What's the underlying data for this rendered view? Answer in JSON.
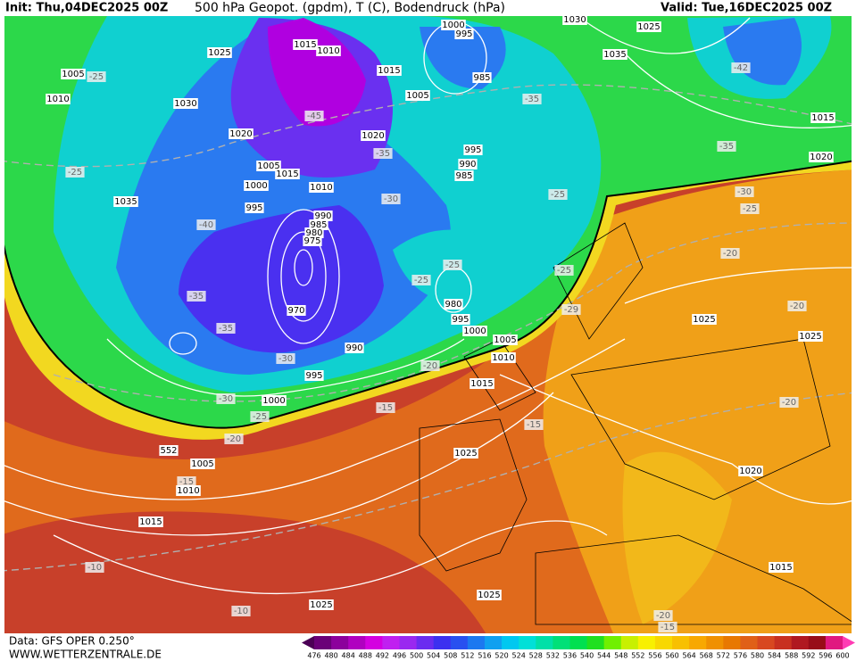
{
  "header": {
    "init": "Init: Thu,04DEC2025 00Z",
    "title": "500 hPa Geopot. (gpdm), T (C), Bodendruck (hPa)",
    "valid": "Valid: Tue,16DEC2025 00Z"
  },
  "footer": {
    "source": "Data: GFS OPER 0.250°",
    "site": "WWW.WETTERZENTRALE.DE"
  },
  "legend": {
    "levels": [
      476,
      480,
      484,
      488,
      492,
      496,
      500,
      504,
      508,
      512,
      516,
      520,
      524,
      528,
      532,
      536,
      540,
      544,
      548,
      552,
      556,
      560,
      564,
      568,
      572,
      576,
      580,
      584,
      588,
      592,
      596,
      600
    ],
    "colors": [
      "#4b0055",
      "#6a0078",
      "#8c009c",
      "#b000c0",
      "#d400e0",
      "#c020f0",
      "#9a28f0",
      "#6a2cf0",
      "#3c30f0",
      "#2850f0",
      "#1c78f0",
      "#10a0f0",
      "#00c8f0",
      "#00e0d8",
      "#00e0a8",
      "#00e078",
      "#00e050",
      "#20e020",
      "#70f000",
      "#c8f000",
      "#f8f000",
      "#f8d800",
      "#f8c000",
      "#f8a800",
      "#f09000",
      "#e87800",
      "#e06018",
      "#d84820",
      "#c83020",
      "#b01820",
      "#980c18",
      "#e01880",
      "#ff3cb4"
    ]
  },
  "map_labels": [
    "1005",
    "-25",
    "1010",
    "1030",
    "1025",
    "1015",
    "1010",
    "1015",
    "1005",
    "1000",
    "995",
    "985",
    "-35",
    "1030",
    "1025",
    "1035",
    "-42",
    "1015",
    "-35",
    "1020",
    "-30",
    "-25",
    "1020",
    "-45",
    "1020",
    "-35",
    "1005",
    "1015",
    "1000",
    "1010",
    "-30",
    "995",
    "990",
    "985",
    "980",
    "975",
    "-40",
    "-25",
    "1035",
    "995",
    "990",
    "985",
    "-25",
    "-25",
    "-25",
    "-25",
    "980",
    "995",
    "1000",
    "1005",
    "1010",
    "1015",
    "-20",
    "-29",
    "-35",
    "-35",
    "970",
    "990",
    "-30",
    "995",
    "-30",
    "1000",
    "-25",
    "-15",
    "-20",
    "552",
    "1005",
    "-15",
    "1010",
    "1025",
    "-15",
    "1015",
    "-10",
    "-10",
    "1025",
    "1025",
    "-20",
    "1025",
    "-20",
    "1025",
    "-20",
    "1020",
    "1015",
    "-20",
    "-15"
  ]
}
